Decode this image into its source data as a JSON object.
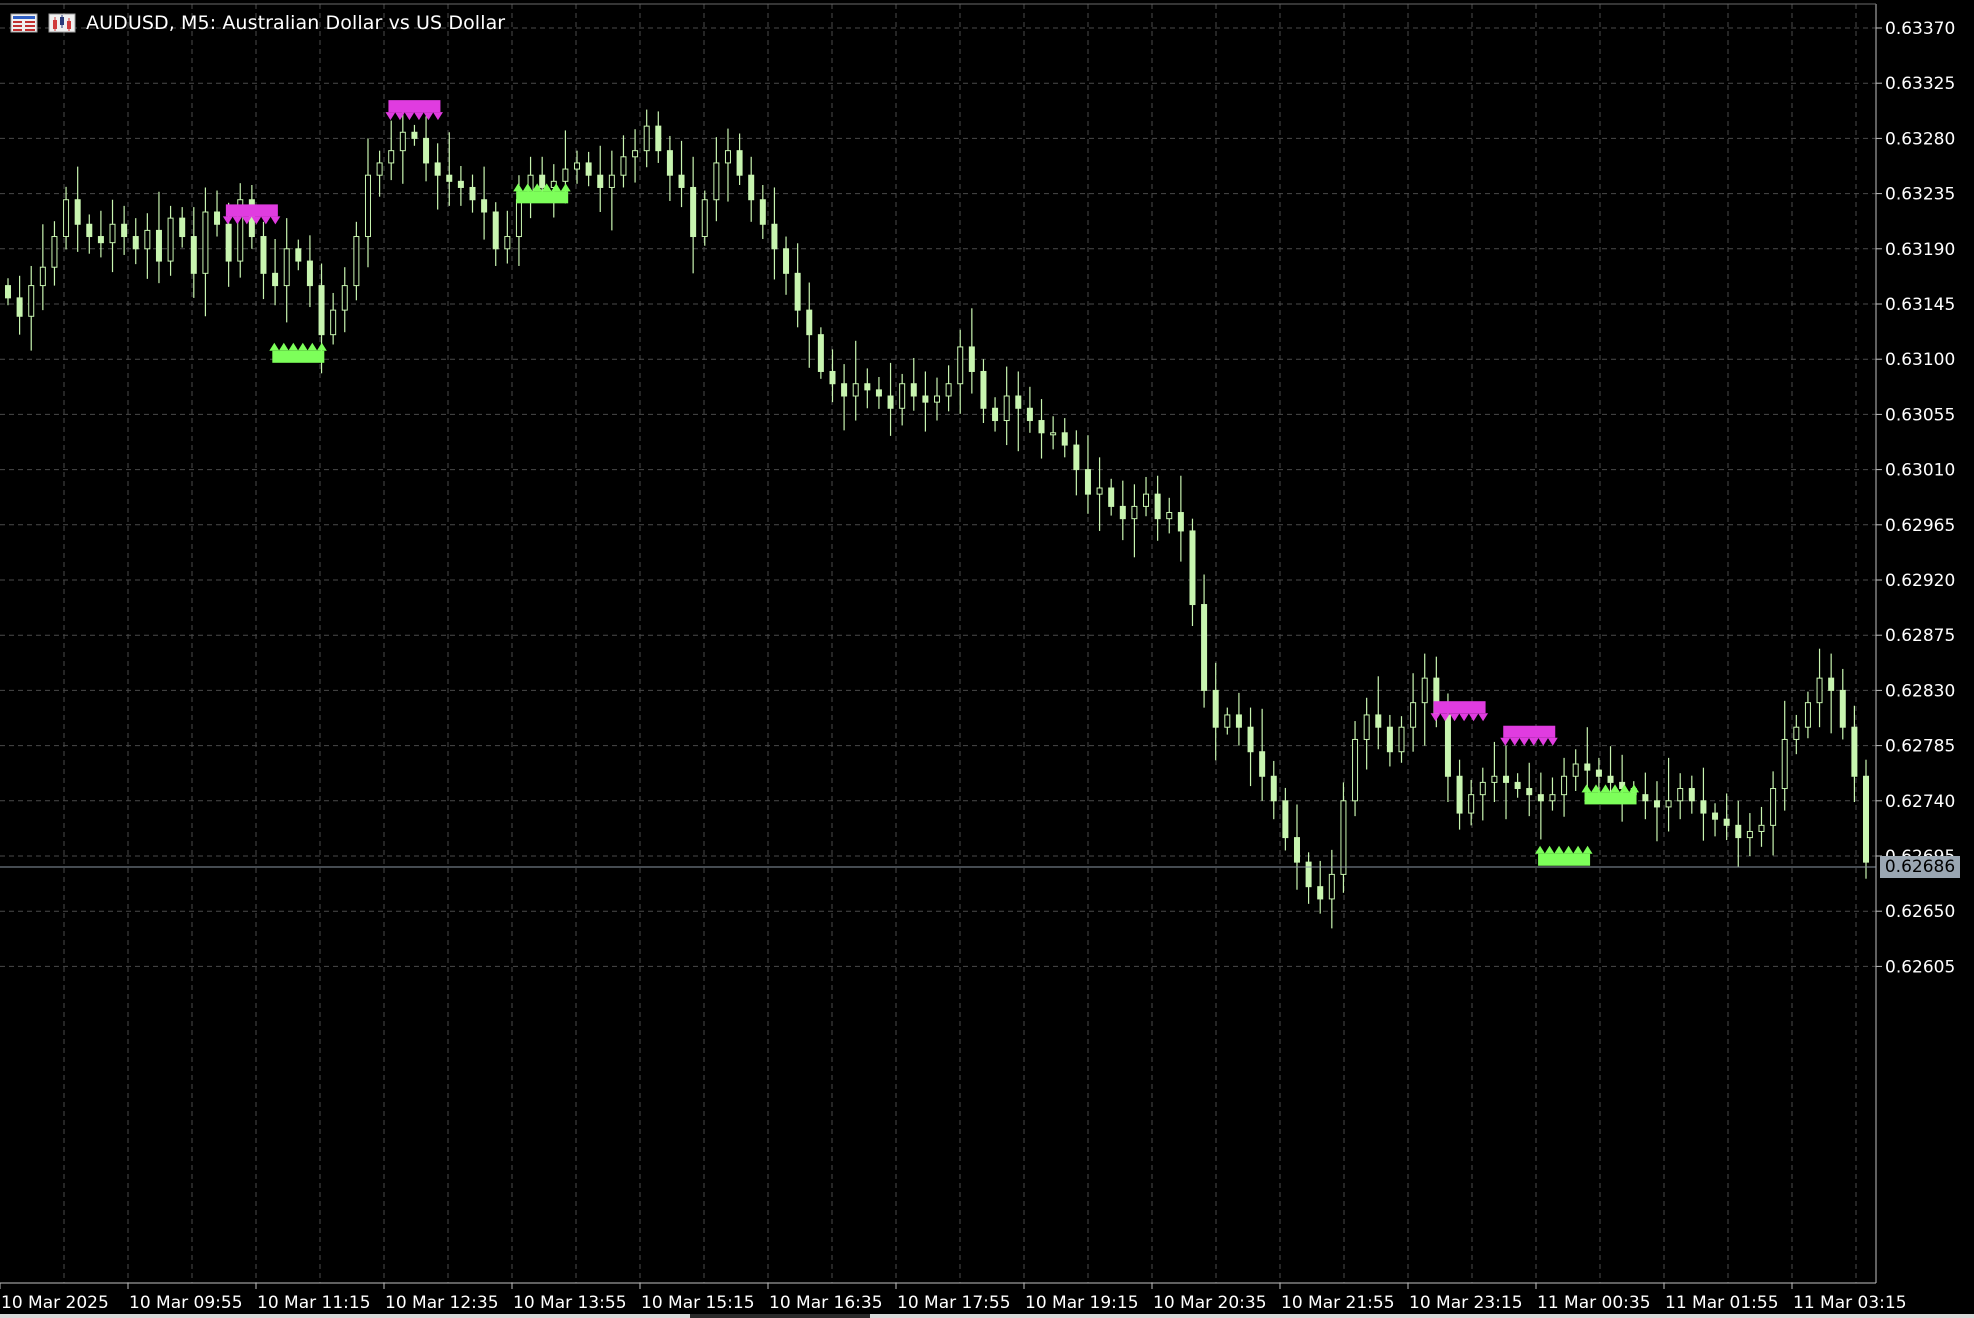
{
  "window": {
    "title": "AUDUSD, M5:  Australian Dollar vs US Dollar"
  },
  "icons": {
    "menu": "window-list-icon",
    "chart": "chart-candles-icon"
  },
  "colors": {
    "background": "#000000",
    "grid": "#4a4a4a",
    "candle": "#c8f5b0",
    "buy_marker": "#7dff5a",
    "sell_marker": "#e03ce0",
    "axis_text": "#ffffff",
    "price_line": "#8a96a2",
    "price_tag_bg": "#9aa6b2"
  },
  "price_axis_labels": [
    "0.63370",
    "0.63325",
    "0.63280",
    "0.63235",
    "0.63190",
    "0.63145",
    "0.63100",
    "0.63055",
    "0.63010",
    "0.62965",
    "0.62920",
    "0.62875",
    "0.62830",
    "0.62785",
    "0.62740",
    "0.62695",
    "0.62650",
    "0.62605"
  ],
  "time_axis_labels": [
    "10 Mar 2025",
    "10 Mar 09:55",
    "10 Mar 11:15",
    "10 Mar 12:35",
    "10 Mar 13:55",
    "10 Mar 15:15",
    "10 Mar 16:35",
    "10 Mar 17:55",
    "10 Mar 19:15",
    "10 Mar 20:35",
    "10 Mar 21:55",
    "10 Mar 23:15",
    "11 Mar 00:35",
    "11 Mar 01:55",
    "11 Mar 03:15"
  ],
  "current_price": "0.62686",
  "chart_data": {
    "type": "candlestick",
    "symbol": "AUDUSD",
    "timeframe": "M5",
    "ylim": [
      0.6257,
      0.6339
    ],
    "closes": [
      0.6315,
      0.63135,
      0.6316,
      0.63175,
      0.632,
      0.6323,
      0.6321,
      0.632,
      0.63195,
      0.6321,
      0.632,
      0.6319,
      0.63205,
      0.6318,
      0.63215,
      0.632,
      0.6317,
      0.6322,
      0.6321,
      0.6318,
      0.6323,
      0.632,
      0.6317,
      0.6316,
      0.6319,
      0.6318,
      0.6316,
      0.6312,
      0.6314,
      0.6316,
      0.632,
      0.6325,
      0.6326,
      0.6327,
      0.63285,
      0.6328,
      0.6326,
      0.6325,
      0.63245,
      0.6324,
      0.6323,
      0.6322,
      0.6319,
      0.632,
      0.6323,
      0.6325,
      0.6324,
      0.63245,
      0.63255,
      0.6326,
      0.6325,
      0.6324,
      0.6325,
      0.63265,
      0.6327,
      0.6329,
      0.6327,
      0.6325,
      0.6324,
      0.632,
      0.6323,
      0.6326,
      0.6327,
      0.6325,
      0.6323,
      0.6321,
      0.6319,
      0.6317,
      0.6314,
      0.6312,
      0.6309,
      0.6308,
      0.6307,
      0.6308,
      0.63075,
      0.6307,
      0.6306,
      0.6308,
      0.6307,
      0.63065,
      0.6307,
      0.6308,
      0.6311,
      0.6309,
      0.6306,
      0.6305,
      0.6307,
      0.6306,
      0.6305,
      0.6304,
      0.6304,
      0.6303,
      0.6301,
      0.6299,
      0.62995,
      0.6298,
      0.6297,
      0.6298,
      0.6299,
      0.6297,
      0.62975,
      0.6296,
      0.629,
      0.6283,
      0.628,
      0.6281,
      0.628,
      0.6278,
      0.6276,
      0.6274,
      0.6271,
      0.6269,
      0.6267,
      0.6266,
      0.6268,
      0.6274,
      0.6279,
      0.6281,
      0.628,
      0.6278,
      0.628,
      0.6282,
      0.6284,
      0.6281,
      0.6276,
      0.6273,
      0.62745,
      0.62755,
      0.6276,
      0.62755,
      0.6275,
      0.62745,
      0.6274,
      0.62745,
      0.6276,
      0.6277,
      0.62765,
      0.6276,
      0.62755,
      0.6275,
      0.62745,
      0.6274,
      0.62735,
      0.6274,
      0.6275,
      0.6274,
      0.6273,
      0.62725,
      0.6272,
      0.6271,
      0.62715,
      0.6272,
      0.6275,
      0.6279,
      0.628,
      0.6282,
      0.6284,
      0.6283,
      0.628,
      0.6276,
      0.6269
    ],
    "annotations": [
      {
        "type": "sell",
        "index": 35,
        "price": 0.6329
      },
      {
        "type": "buy",
        "index": 46,
        "price": 0.63245
      },
      {
        "type": "sell",
        "index": 21,
        "price": 0.63205
      },
      {
        "type": "buy",
        "index": 25,
        "price": 0.63115
      },
      {
        "type": "sell",
        "index": 125,
        "price": 0.628
      },
      {
        "type": "sell",
        "index": 131,
        "price": 0.6278
      },
      {
        "type": "buy",
        "index": 138,
        "price": 0.62755
      },
      {
        "type": "buy",
        "index": 134,
        "price": 0.62705
      }
    ]
  }
}
